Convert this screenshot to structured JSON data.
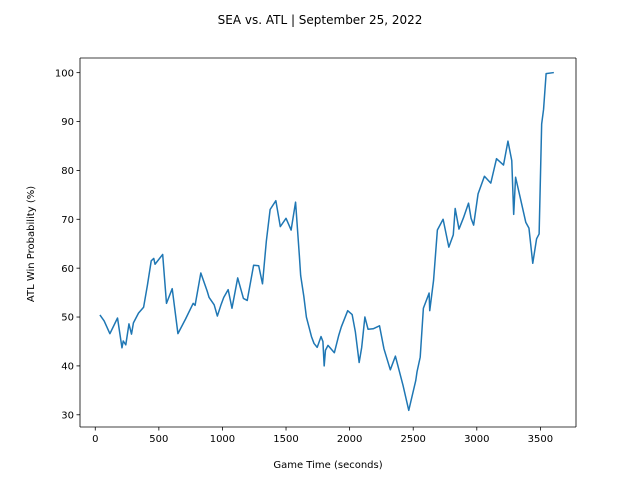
{
  "chart_data": {
    "type": "line",
    "title": "SEA vs. ATL | September 25, 2022",
    "xlabel": "Game Time (seconds)",
    "ylabel": "ATL Win Probability (%)",
    "xlim": [
      -120,
      3780
    ],
    "ylim": [
      27.5,
      103
    ],
    "xticks": [
      0,
      500,
      1000,
      1500,
      2000,
      2500,
      3000,
      3500
    ],
    "yticks": [
      30,
      40,
      50,
      60,
      70,
      80,
      90,
      100
    ],
    "grid": false,
    "legend": "none",
    "series": [
      {
        "color": "#1f77b4",
        "x": [
          40,
          70,
          115,
          175,
          210,
          220,
          240,
          265,
          285,
          300,
          340,
          380,
          410,
          440,
          460,
          470,
          530,
          560,
          605,
          650,
          710,
          770,
          785,
          830,
          880,
          895,
          935,
          960,
          990,
          1010,
          1045,
          1075,
          1120,
          1165,
          1195,
          1245,
          1285,
          1315,
          1345,
          1375,
          1420,
          1455,
          1500,
          1540,
          1575,
          1605,
          1615,
          1640,
          1660,
          1700,
          1720,
          1745,
          1775,
          1790,
          1800,
          1810,
          1830,
          1880,
          1915,
          1935,
          1985,
          2020,
          2045,
          2075,
          2095,
          2120,
          2145,
          2185,
          2235,
          2270,
          2320,
          2360,
          2420,
          2465,
          2520,
          2530,
          2555,
          2580,
          2625,
          2630,
          2660,
          2690,
          2735,
          2780,
          2815,
          2830,
          2860,
          2895,
          2935,
          2955,
          2975,
          3010,
          3060,
          3110,
          3155,
          3210,
          3245,
          3275,
          3290,
          3305,
          3340,
          3385,
          3410,
          3440,
          3470,
          3490,
          3510,
          3525,
          3545,
          3600
        ],
        "values": [
          50.3,
          49.2,
          46.6,
          49.8,
          43.7,
          45.1,
          44.3,
          48.6,
          46.5,
          48.8,
          50.8,
          52.0,
          56.5,
          61.5,
          62.0,
          60.8,
          62.8,
          52.8,
          55.8,
          46.6,
          49.6,
          52.8,
          52.4,
          59.0,
          55.3,
          54.0,
          52.5,
          50.2,
          52.6,
          54.0,
          55.6,
          51.8,
          58.0,
          53.8,
          53.4,
          60.6,
          60.5,
          56.8,
          65.5,
          72.0,
          73.8,
          68.5,
          70.2,
          67.8,
          73.5,
          62.5,
          58.5,
          54.2,
          50.0,
          46.0,
          44.6,
          43.8,
          46.0,
          45.0,
          40.0,
          43.2,
          44.2,
          42.7,
          46.3,
          48.0,
          51.3,
          50.5,
          47.0,
          40.7,
          43.8,
          50.0,
          47.5,
          47.6,
          48.2,
          43.5,
          39.2,
          42.0,
          36.0,
          30.9,
          37.0,
          38.8,
          41.8,
          51.8,
          54.9,
          51.3,
          57.5,
          67.8,
          70.0,
          64.3,
          66.8,
          72.2,
          68.0,
          70.3,
          73.3,
          70.2,
          68.8,
          75.2,
          78.8,
          77.4,
          82.4,
          81.1,
          86.0,
          82.0,
          71.0,
          78.6,
          74.6,
          69.4,
          68.2,
          61.0,
          66.0,
          67.0,
          89.5,
          92.5,
          99.8,
          100.0
        ]
      }
    ]
  }
}
